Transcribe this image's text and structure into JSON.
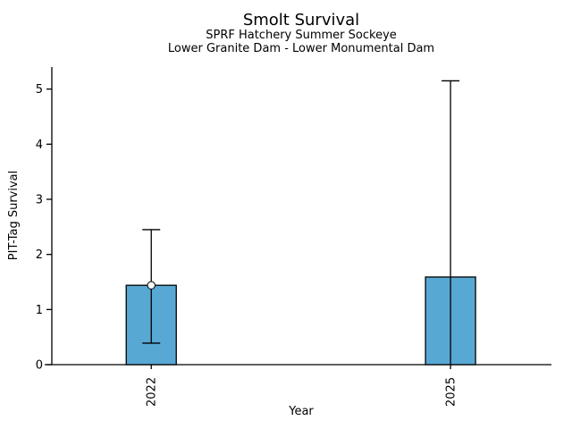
{
  "chart_data": {
    "type": "bar",
    "title": "Smolt Survival",
    "subtitle": [
      "SPRF Hatchery Summer Sockeye",
      "Lower Granite Dam - Lower Monumental Dam"
    ],
    "xlabel": "Year",
    "ylabel": "PIT-Tag Survival",
    "categories": [
      "2022",
      "2025"
    ],
    "values": [
      1.44,
      1.59
    ],
    "error_low": [
      0.39,
      0.0
    ],
    "error_high": [
      2.45,
      5.15
    ],
    "point_marker": [
      true,
      false
    ],
    "ylim": [
      0,
      5.4
    ],
    "yticks": [
      0,
      1,
      2,
      3,
      4,
      5
    ],
    "xtick_rotation": 90,
    "grid": false,
    "legend": false,
    "bar_color": "#58a8d4",
    "bar_edge_color": "#000000",
    "axis_color": "#000000"
  }
}
